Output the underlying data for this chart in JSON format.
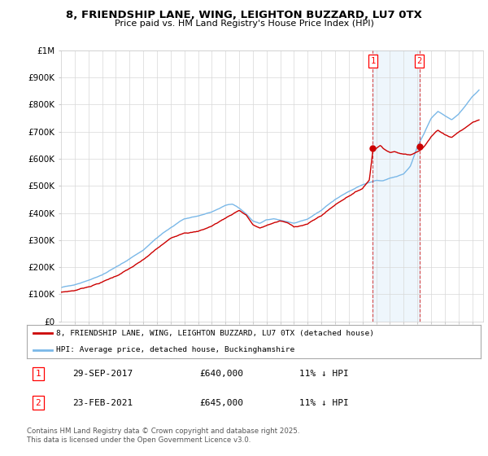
{
  "title": "8, FRIENDSHIP LANE, WING, LEIGHTON BUZZARD, LU7 0TX",
  "subtitle": "Price paid vs. HM Land Registry's House Price Index (HPI)",
  "ylim": [
    0,
    1000000
  ],
  "yticks": [
    0,
    100000,
    200000,
    300000,
    400000,
    500000,
    600000,
    700000,
    800000,
    900000,
    1000000
  ],
  "ytick_labels": [
    "£0",
    "£100K",
    "£200K",
    "£300K",
    "£400K",
    "£500K",
    "£600K",
    "£700K",
    "£800K",
    "£900K",
    "£1M"
  ],
  "hpi_color": "#7ab8e8",
  "price_color": "#cc0000",
  "annotation_color": "#cc0000",
  "sale1_date": 2017.75,
  "sale1_price": 640000,
  "sale1_label": "1",
  "sale2_date": 2021.15,
  "sale2_price": 645000,
  "sale2_label": "2",
  "legend_price_label": "8, FRIENDSHIP LANE, WING, LEIGHTON BUZZARD, LU7 0TX (detached house)",
  "legend_hpi_label": "HPI: Average price, detached house, Buckinghamshire",
  "footnote": "Contains HM Land Registry data © Crown copyright and database right 2025.\nThis data is licensed under the Open Government Licence v3.0.",
  "table": [
    {
      "num": "1",
      "date": "29-SEP-2017",
      "price": "£640,000",
      "change": "11% ↓ HPI"
    },
    {
      "num": "2",
      "date": "23-FEB-2021",
      "price": "£645,000",
      "change": "11% ↓ HPI"
    }
  ],
  "hpi_keypoints": {
    "1995": 125000,
    "1996": 135000,
    "1997": 152000,
    "1998": 170000,
    "1999": 198000,
    "2000": 228000,
    "2001": 260000,
    "2002": 305000,
    "2003": 345000,
    "2004": 375000,
    "2005": 385000,
    "2006": 400000,
    "2007": 425000,
    "2007.5": 430000,
    "2008": 415000,
    "2008.5": 395000,
    "2009": 368000,
    "2009.5": 360000,
    "2010": 375000,
    "2010.5": 378000,
    "2011": 372000,
    "2012": 360000,
    "2013": 378000,
    "2014": 408000,
    "2015": 448000,
    "2016": 478000,
    "2017": 502000,
    "2017.5": 510000,
    "2018": 518000,
    "2018.5": 515000,
    "2019": 525000,
    "2019.5": 530000,
    "2020": 540000,
    "2020.5": 570000,
    "2021": 640000,
    "2021.5": 690000,
    "2022": 745000,
    "2022.5": 770000,
    "2023": 755000,
    "2023.5": 740000,
    "2024": 760000,
    "2024.5": 790000,
    "2025": 825000,
    "2025.5": 850000
  },
  "price_keypoints": {
    "1995": 108000,
    "1996": 115000,
    "1997": 130000,
    "1998": 148000,
    "1999": 170000,
    "2000": 198000,
    "2001": 228000,
    "2002": 268000,
    "2003": 305000,
    "2004": 330000,
    "2005": 335000,
    "2006": 355000,
    "2007": 385000,
    "2007.5": 400000,
    "2008": 415000,
    "2008.5": 398000,
    "2009": 362000,
    "2009.5": 348000,
    "2010": 358000,
    "2010.5": 368000,
    "2011": 375000,
    "2011.5": 368000,
    "2012": 352000,
    "2013": 365000,
    "2014": 395000,
    "2015": 435000,
    "2016": 470000,
    "2017": 498000,
    "2017.5": 530000,
    "2017.75": 640000,
    "2018": 648000,
    "2018.3": 658000,
    "2018.5": 650000,
    "2018.8": 640000,
    "2019": 635000,
    "2019.3": 638000,
    "2019.6": 632000,
    "2020": 628000,
    "2020.5": 625000,
    "2021.15": 645000,
    "2021.5": 660000,
    "2022": 695000,
    "2022.5": 720000,
    "2023": 705000,
    "2023.5": 695000,
    "2024": 715000,
    "2024.5": 730000,
    "2025": 750000,
    "2025.5": 760000
  }
}
